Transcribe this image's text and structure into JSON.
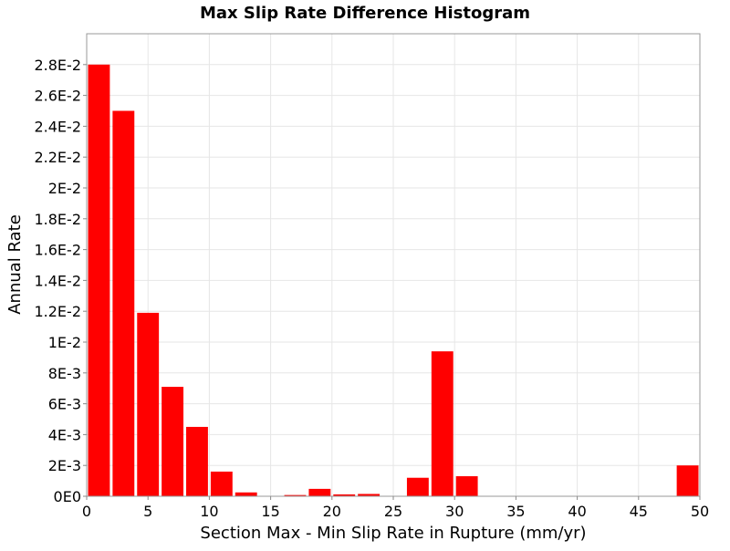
{
  "chart_data": {
    "type": "bar",
    "title": "Max Slip Rate Difference Histogram",
    "xlabel": "Section Max - Min Slip Rate in Rupture (mm/yr)",
    "ylabel": "Annual Rate",
    "xlim": [
      0,
      50
    ],
    "ylim": [
      0,
      0.03
    ],
    "bin_width": 2,
    "x": [
      1,
      3,
      5,
      7,
      9,
      11,
      13,
      15,
      17,
      19,
      21,
      23,
      25,
      27,
      29,
      31,
      33,
      35,
      37,
      39,
      41,
      43,
      45,
      47,
      49
    ],
    "values": [
      0.028,
      0.025,
      0.0119,
      0.0071,
      0.0045,
      0.0016,
      0.00025,
      0.0,
      8e-05,
      0.00048,
      0.00012,
      0.00015,
      0.0,
      0.0012,
      0.0094,
      0.0013,
      0.0,
      0.0,
      0.0,
      0.0,
      0.0,
      0.0,
      0.0,
      0.0,
      0.002
    ],
    "bar_color": "#ff0000",
    "grid": true,
    "x_ticks": [
      {
        "value": 0,
        "label": "0"
      },
      {
        "value": 5,
        "label": "5"
      },
      {
        "value": 10,
        "label": "10"
      },
      {
        "value": 15,
        "label": "15"
      },
      {
        "value": 20,
        "label": "20"
      },
      {
        "value": 25,
        "label": "25"
      },
      {
        "value": 30,
        "label": "30"
      },
      {
        "value": 35,
        "label": "35"
      },
      {
        "value": 40,
        "label": "40"
      },
      {
        "value": 45,
        "label": "45"
      },
      {
        "value": 50,
        "label": "50"
      }
    ],
    "y_ticks": [
      {
        "value": 0,
        "label": "0E0"
      },
      {
        "value": 0.002,
        "label": "2E-3"
      },
      {
        "value": 0.004,
        "label": "4E-3"
      },
      {
        "value": 0.006,
        "label": "6E-3"
      },
      {
        "value": 0.008,
        "label": "8E-3"
      },
      {
        "value": 0.01,
        "label": "1E-2"
      },
      {
        "value": 0.012,
        "label": "1.2E-2"
      },
      {
        "value": 0.014,
        "label": "1.4E-2"
      },
      {
        "value": 0.016,
        "label": "1.6E-2"
      },
      {
        "value": 0.018,
        "label": "1.8E-2"
      },
      {
        "value": 0.02,
        "label": "2E-2"
      },
      {
        "value": 0.022,
        "label": "2.2E-2"
      },
      {
        "value": 0.024,
        "label": "2.4E-2"
      },
      {
        "value": 0.026,
        "label": "2.6E-2"
      },
      {
        "value": 0.028,
        "label": "2.8E-2"
      }
    ]
  }
}
